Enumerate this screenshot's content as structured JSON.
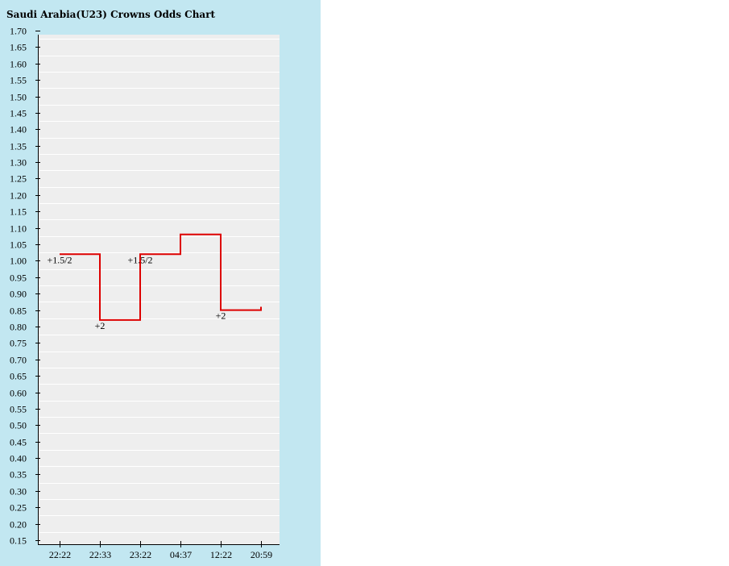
{
  "chart_data": {
    "type": "line",
    "title": "Saudi Arabia(U23) Crowns Odds Chart",
    "xlabel": "",
    "ylabel": "",
    "ylim": [
      0.15,
      1.7
    ],
    "y_ticks": [
      "1.70",
      "1.65",
      "1.60",
      "1.55",
      "1.50",
      "1.45",
      "1.40",
      "1.35",
      "1.30",
      "1.25",
      "1.20",
      "1.15",
      "1.10",
      "1.05",
      "1.00",
      "0.95",
      "0.90",
      "0.85",
      "0.80",
      "0.75",
      "0.70",
      "0.65",
      "0.60",
      "0.55",
      "0.50",
      "0.45",
      "0.40",
      "0.35",
      "0.30",
      "0.25",
      "0.20",
      "0.15"
    ],
    "categories": [
      "22:22",
      "22:33",
      "23:22",
      "04:37",
      "12:22",
      "20:59"
    ],
    "step": true,
    "grid": true,
    "series": [
      {
        "values": [
          1.02,
          0.82,
          1.02,
          1.08,
          0.85,
          0.86
        ],
        "color": "#dd0000"
      }
    ],
    "annotations": [
      {
        "index": 0,
        "text": "+1.5/2"
      },
      {
        "index": 1,
        "text": "+2"
      },
      {
        "index": 2,
        "text": "+1.5/2"
      },
      {
        "index": 4,
        "text": "+2"
      }
    ],
    "colors": {
      "background": "#c2e7f1",
      "plot_area": "#eeeeee",
      "gridline": "#ffffff",
      "line": "#dd0000"
    }
  }
}
